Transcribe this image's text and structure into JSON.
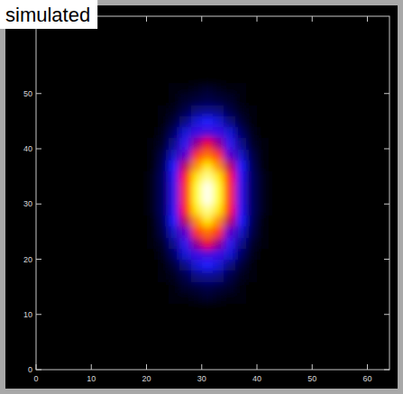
{
  "chart_data": {
    "type": "heatmap",
    "title": "simulated",
    "x": [
      21,
      23,
      25,
      27,
      29,
      31,
      33,
      35,
      37,
      39,
      41
    ],
    "y": [
      13,
      15,
      17,
      19,
      21,
      23,
      25,
      27,
      29,
      31,
      33,
      35,
      37,
      39,
      41,
      43,
      45,
      47,
      49,
      51
    ],
    "values": [
      [
        0,
        0,
        0.01,
        0.01,
        0.02,
        0.03,
        0.02,
        0.01,
        0.01,
        0,
        0
      ],
      [
        0,
        0,
        0.01,
        0.03,
        0.04,
        0.05,
        0.04,
        0.03,
        0.01,
        0,
        0
      ],
      [
        0,
        0.01,
        0.02,
        0.05,
        0.09,
        0.1,
        0.09,
        0.05,
        0.02,
        0.01,
        0
      ],
      [
        0,
        0.01,
        0.04,
        0.09,
        0.15,
        0.18,
        0.15,
        0.09,
        0.04,
        0.01,
        0
      ],
      [
        0,
        0.02,
        0.07,
        0.15,
        0.25,
        0.29,
        0.25,
        0.15,
        0.07,
        0.02,
        0
      ],
      [
        0.01,
        0.03,
        0.1,
        0.23,
        0.37,
        0.44,
        0.37,
        0.23,
        0.1,
        0.03,
        0.01
      ],
      [
        0.01,
        0.05,
        0.14,
        0.32,
        0.52,
        0.61,
        0.52,
        0.32,
        0.14,
        0.05,
        0.01
      ],
      [
        0.01,
        0.06,
        0.18,
        0.4,
        0.65,
        0.77,
        0.65,
        0.4,
        0.18,
        0.06,
        0.01
      ],
      [
        0.02,
        0.07,
        0.21,
        0.47,
        0.77,
        0.91,
        0.77,
        0.47,
        0.21,
        0.07,
        0.02
      ],
      [
        0.02,
        0.07,
        0.23,
        0.51,
        0.84,
        0.99,
        0.84,
        0.51,
        0.23,
        0.07,
        0.02
      ],
      [
        0.02,
        0.07,
        0.23,
        0.51,
        0.84,
        0.99,
        0.84,
        0.51,
        0.23,
        0.07,
        0.02
      ],
      [
        0.02,
        0.07,
        0.21,
        0.47,
        0.77,
        0.91,
        0.77,
        0.47,
        0.21,
        0.07,
        0.02
      ],
      [
        0.01,
        0.06,
        0.18,
        0.4,
        0.65,
        0.77,
        0.65,
        0.4,
        0.18,
        0.06,
        0.01
      ],
      [
        0.01,
        0.05,
        0.14,
        0.32,
        0.52,
        0.61,
        0.52,
        0.32,
        0.14,
        0.05,
        0.01
      ],
      [
        0.01,
        0.03,
        0.1,
        0.23,
        0.37,
        0.44,
        0.37,
        0.23,
        0.1,
        0.03,
        0.01
      ],
      [
        0,
        0.02,
        0.07,
        0.15,
        0.25,
        0.29,
        0.25,
        0.15,
        0.07,
        0.02,
        0
      ],
      [
        0,
        0.01,
        0.04,
        0.09,
        0.15,
        0.18,
        0.15,
        0.09,
        0.04,
        0.01,
        0
      ],
      [
        0,
        0.01,
        0.02,
        0.05,
        0.09,
        0.1,
        0.09,
        0.05,
        0.02,
        0.01,
        0
      ],
      [
        0,
        0,
        0.01,
        0.03,
        0.04,
        0.05,
        0.04,
        0.03,
        0.01,
        0,
        0
      ],
      [
        0,
        0,
        0.01,
        0.01,
        0.02,
        0.03,
        0.02,
        0.01,
        0.01,
        0,
        0
      ]
    ],
    "zlim": [
      0,
      1
    ],
    "xlim": [
      0,
      64
    ],
    "ylim": [
      0,
      64
    ],
    "xticks": [
      0,
      10,
      20,
      30,
      40,
      50,
      60
    ],
    "yticks": [
      0,
      10,
      20,
      30,
      40,
      50
    ],
    "grid": false
  }
}
